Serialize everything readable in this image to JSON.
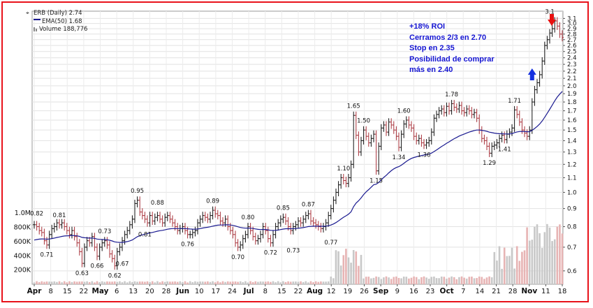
{
  "header": {
    "ticker": "ERB (Daily) 2.74",
    "ema": "EMA(50) 1.68",
    "volume": "Volume 188,776"
  },
  "notes": [
    "+18% ROI",
    "Cerramos 2/3 en 2.70",
    "Stop en 2.35",
    "Posibilidad de comprar",
    "más en 2.40"
  ],
  "colors": {
    "frame": "#e8121a",
    "up": "#111111",
    "down": "#a8323a",
    "ema": "#1a1a90",
    "volume": "#c8c8c8",
    "volume_down": "#e7b4b4",
    "note_text": "#1515d2",
    "arrow_up": "#1430e0",
    "arrow_down": "#e81010"
  },
  "chart_data": {
    "type": "line",
    "title": "ERB (Daily) 2.74",
    "log_scale": true,
    "grid": true,
    "price_axis": {
      "side": "right",
      "ylim": [
        0.55,
        3.25
      ],
      "ticks": [
        0.6,
        0.7,
        0.8,
        0.9,
        1.0,
        1.1,
        1.2,
        1.3,
        1.4,
        1.5,
        1.6,
        1.7,
        1.8,
        1.9,
        2.0,
        2.1,
        2.2,
        2.3,
        2.4,
        2.5,
        2.6,
        2.7,
        2.8,
        2.9,
        3.0,
        3.1
      ]
    },
    "volume_axis": {
      "side": "left",
      "ticks": [
        "200K",
        "400K",
        "600K",
        "800K",
        "1.0M"
      ],
      "values": [
        200000,
        400000,
        600000,
        800000,
        1000000
      ]
    },
    "x_ticks": [
      "Apr",
      "8",
      "15",
      "22",
      "May",
      "6",
      "13",
      "20",
      "28",
      "Jun",
      "10",
      "17",
      "24",
      "Jul",
      "8",
      "15",
      "22",
      "Aug",
      "12",
      "19",
      "26",
      "Sep",
      "9",
      "16",
      "23",
      "Oct",
      "7",
      "14",
      "21",
      "28",
      "Nov",
      "11",
      "18"
    ],
    "x_month_ticks": [
      "Apr",
      "May",
      "Jun",
      "Jul",
      "Aug",
      "Sep",
      "Oct",
      "Nov"
    ],
    "close": [
      0.81,
      0.8,
      0.78,
      0.77,
      0.73,
      0.71,
      0.76,
      0.79,
      0.8,
      0.82,
      0.81,
      0.82,
      0.8,
      0.78,
      0.76,
      0.78,
      0.75,
      0.72,
      0.68,
      0.63,
      0.7,
      0.73,
      0.72,
      0.75,
      0.7,
      0.66,
      0.7,
      0.72,
      0.73,
      0.71,
      0.67,
      0.65,
      0.62,
      0.68,
      0.7,
      0.73,
      0.76,
      0.78,
      0.81,
      0.84,
      0.93,
      0.95,
      0.88,
      0.86,
      0.84,
      0.82,
      0.86,
      0.83,
      0.85,
      0.86,
      0.84,
      0.82,
      0.85,
      0.86,
      0.84,
      0.82,
      0.8,
      0.78,
      0.79,
      0.8,
      0.78,
      0.76,
      0.76,
      0.77,
      0.78,
      0.82,
      0.84,
      0.86,
      0.85,
      0.84,
      0.86,
      0.89,
      0.87,
      0.86,
      0.83,
      0.82,
      0.84,
      0.8,
      0.78,
      0.76,
      0.72,
      0.7,
      0.71,
      0.74,
      0.76,
      0.8,
      0.78,
      0.75,
      0.73,
      0.74,
      0.76,
      0.8,
      0.78,
      0.74,
      0.72,
      0.76,
      0.8,
      0.82,
      0.84,
      0.85,
      0.83,
      0.8,
      0.78,
      0.8,
      0.81,
      0.83,
      0.82,
      0.84,
      0.86,
      0.87,
      0.83,
      0.82,
      0.81,
      0.8,
      0.79,
      0.8,
      0.82,
      0.86,
      0.9,
      0.95,
      1.0,
      1.05,
      1.1,
      1.08,
      1.06,
      1.1,
      1.2,
      1.65,
      1.45,
      1.3,
      1.4,
      1.5,
      1.44,
      1.38,
      1.42,
      1.46,
      1.15,
      1.35,
      1.52,
      1.55,
      1.48,
      1.58,
      1.55,
      1.5,
      1.44,
      1.34,
      1.46,
      1.56,
      1.6,
      1.55,
      1.52,
      1.44,
      1.4,
      1.42,
      1.38,
      1.36,
      1.38,
      1.4,
      1.48,
      1.62,
      1.66,
      1.7,
      1.72,
      1.68,
      1.75,
      1.7,
      1.78,
      1.74,
      1.72,
      1.76,
      1.7,
      1.68,
      1.72,
      1.7,
      1.66,
      1.68,
      1.62,
      1.5,
      1.42,
      1.4,
      1.35,
      1.29,
      1.35,
      1.36,
      1.38,
      1.42,
      1.45,
      1.41,
      1.46,
      1.48,
      1.52,
      1.71,
      1.66,
      1.58,
      1.5,
      1.47,
      1.44,
      1.5,
      1.8,
      1.95,
      2.04,
      2.15,
      2.35,
      2.6,
      2.7,
      2.82,
      2.9,
      3.05,
      2.95,
      2.8,
      2.74
    ],
    "annotations": [
      {
        "text": "0.82",
        "index": 1,
        "value": 0.82,
        "pos": "above"
      },
      {
        "text": "0.71",
        "index": 5,
        "value": 0.71,
        "pos": "below"
      },
      {
        "text": "0.81",
        "index": 10,
        "value": 0.81,
        "pos": "above"
      },
      {
        "text": "0.63",
        "index": 19,
        "value": 0.63,
        "pos": "below"
      },
      {
        "text": "0.66",
        "index": 25,
        "value": 0.66,
        "pos": "below"
      },
      {
        "text": "0.73",
        "index": 28,
        "value": 0.73,
        "pos": "above"
      },
      {
        "text": "0.62",
        "index": 32,
        "value": 0.62,
        "pos": "below"
      },
      {
        "text": "0.67",
        "index": 35,
        "value": 0.67,
        "pos": "below"
      },
      {
        "text": "0.95",
        "index": 41,
        "value": 0.95,
        "pos": "above"
      },
      {
        "text": "0.81",
        "index": 44,
        "value": 0.81,
        "pos": "below"
      },
      {
        "text": "0.88",
        "index": 49,
        "value": 0.88,
        "pos": "above"
      },
      {
        "text": "0.76",
        "index": 61,
        "value": 0.76,
        "pos": "below"
      },
      {
        "text": "0.89",
        "index": 71,
        "value": 0.89,
        "pos": "above"
      },
      {
        "text": "0.70",
        "index": 81,
        "value": 0.7,
        "pos": "below"
      },
      {
        "text": "0.80",
        "index": 85,
        "value": 0.8,
        "pos": "above"
      },
      {
        "text": "0.72",
        "index": 94,
        "value": 0.72,
        "pos": "below"
      },
      {
        "text": "0.85",
        "index": 99,
        "value": 0.85,
        "pos": "above"
      },
      {
        "text": "0.73",
        "index": 103,
        "value": 0.73,
        "pos": "below"
      },
      {
        "text": "0.87",
        "index": 109,
        "value": 0.87,
        "pos": "above"
      },
      {
        "text": "0.77",
        "index": 118,
        "value": 0.77,
        "pos": "below"
      },
      {
        "text": "1.10",
        "index": 123,
        "value": 1.1,
        "pos": "above"
      },
      {
        "text": "1.65",
        "index": 127,
        "value": 1.65,
        "pos": "above"
      },
      {
        "text": "1.50",
        "index": 131,
        "value": 1.5,
        "pos": "above"
      },
      {
        "text": "1.15",
        "index": 136,
        "value": 1.15,
        "pos": "below"
      },
      {
        "text": "1.60",
        "index": 147,
        "value": 1.6,
        "pos": "above"
      },
      {
        "text": "1.34",
        "index": 145,
        "value": 1.34,
        "pos": "below"
      },
      {
        "text": "1.36",
        "index": 155,
        "value": 1.36,
        "pos": "below"
      },
      {
        "text": "1.78",
        "index": 166,
        "value": 1.78,
        "pos": "above"
      },
      {
        "text": "1.29",
        "index": 181,
        "value": 1.29,
        "pos": "below"
      },
      {
        "text": "1.71",
        "index": 191,
        "value": 1.71,
        "pos": "above"
      },
      {
        "text": "1.41",
        "index": 187,
        "value": 1.41,
        "pos": "below"
      },
      {
        "text": "3.1",
        "index": 205,
        "value": 3.05,
        "pos": "above"
      }
    ]
  }
}
